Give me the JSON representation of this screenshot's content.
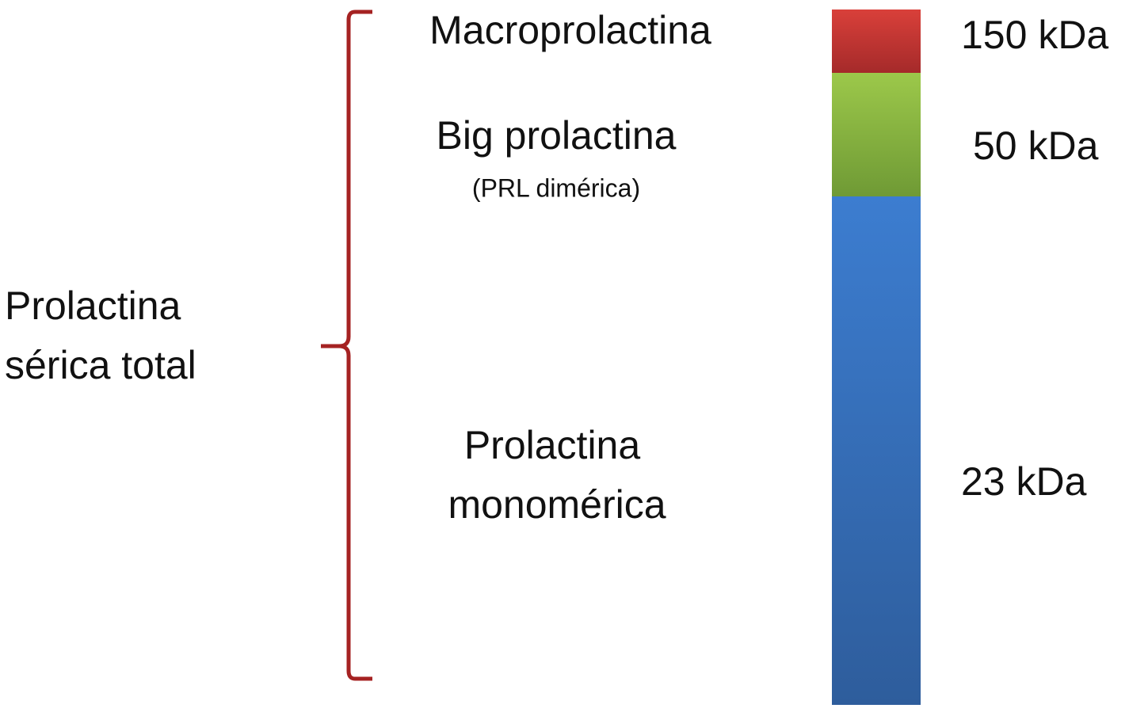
{
  "total_label": {
    "lines": [
      "Prolactina",
      "sérica total"
    ]
  },
  "fractions": [
    {
      "name": [
        "Macroprolactina"
      ],
      "size": "150 kDa"
    },
    {
      "name": [
        "Big prolactina"
      ],
      "note": "(PRL dimérica)",
      "size": "50 kDa"
    },
    {
      "name": [
        "Prolactina",
        "monomérica"
      ],
      "size": "23 kDa"
    }
  ]
}
